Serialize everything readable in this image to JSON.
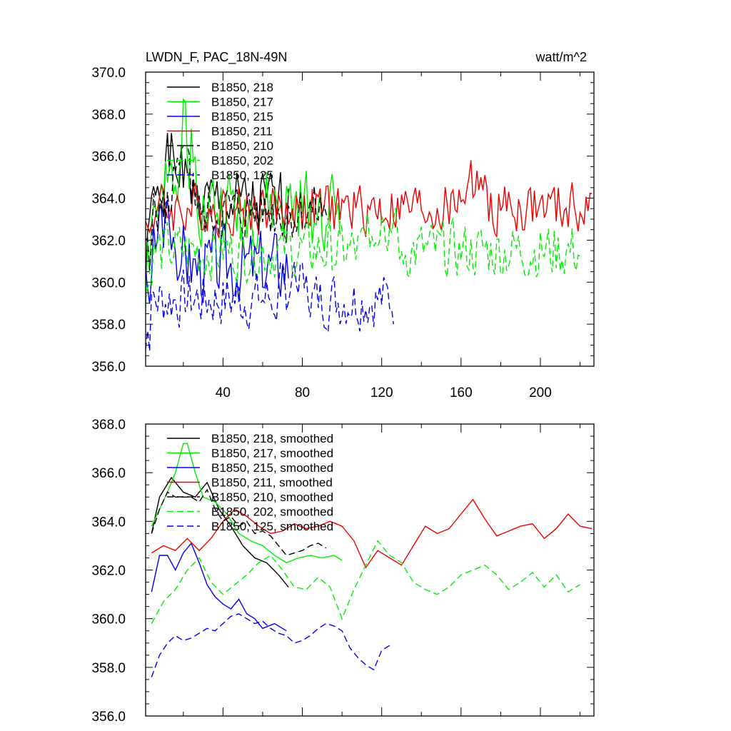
{
  "chart_data": [
    {
      "type": "line",
      "title_left": "LWDN_F, PAC_18N-49N",
      "title_right": "watt/m^2",
      "ylim": [
        356.0,
        370.0
      ],
      "y_ticks": [
        "356.0",
        "358.0",
        "360.0",
        "362.0",
        "364.0",
        "366.0",
        "368.0",
        "370.0"
      ],
      "xlim": [
        1,
        227
      ],
      "x_ticks": [
        "40",
        "80",
        "120",
        "160",
        "200"
      ],
      "series": [
        {
          "name": "B1850, 218",
          "color": "#000000",
          "dash": "solid",
          "x_start": 1,
          "x_end": 73,
          "mean": 363.6,
          "amplitude": 1.2,
          "peak_x": 15,
          "peak_y": 367.1,
          "min_y": 358.5,
          "seed": 1
        },
        {
          "name": "B1850, 217",
          "color": "#00ee00",
          "dash": "solid",
          "x_start": 1,
          "x_end": 99,
          "mean": 363.5,
          "amplitude": 1.4,
          "peak_x": 20,
          "peak_y": 368.7,
          "min_y": 358.0,
          "seed": 2
        },
        {
          "name": "B1850, 215",
          "color": "#0000ee",
          "dash": "solid",
          "x_start": 1,
          "x_end": 73,
          "mean": 360.8,
          "amplitude": 1.3,
          "peak_x": 12,
          "peak_y": 364.1,
          "min_y": 357.6,
          "seed": 3
        },
        {
          "name": "B1850, 211",
          "color": "#ee0000",
          "dash": "solid",
          "x_start": 1,
          "x_end": 226,
          "mean": 363.5,
          "amplitude": 0.9,
          "peak_x": 165,
          "peak_y": 365.8,
          "min_y": 361.3,
          "seed": 4
        },
        {
          "name": "B1850, 210",
          "color": "#000000",
          "dash": "dashed",
          "x_start": 1,
          "x_end": 93,
          "mean": 363.4,
          "amplitude": 1.0,
          "peak_x": 20,
          "peak_y": 366.5,
          "min_y": 360.5,
          "seed": 5
        },
        {
          "name": "B1850, 202",
          "color": "#00ee00",
          "dash": "dashed",
          "x_start": 1,
          "x_end": 220,
          "mean": 361.5,
          "amplitude": 1.0,
          "peak_x": 120,
          "peak_y": 364.8,
          "min_y": 358.0,
          "seed": 6
        },
        {
          "name": "B1850, 125",
          "color": "#0000ee",
          "dash": "dashed",
          "x_start": 1,
          "x_end": 126,
          "mean": 359.2,
          "amplitude": 1.0,
          "peak_x": 75,
          "peak_y": 361.0,
          "min_y": 356.5,
          "seed": 7
        }
      ]
    },
    {
      "type": "line",
      "ylim": [
        356.0,
        368.0
      ],
      "y_ticks": [
        "356.0",
        "358.0",
        "360.0",
        "362.0",
        "364.0",
        "366.0",
        "368.0"
      ],
      "xlim": [
        1,
        227
      ],
      "series": [
        {
          "name": "B1850, 218, smoothed",
          "color": "#000000",
          "dash": "solid",
          "x": [
            4,
            8,
            14,
            20,
            26,
            32,
            38,
            44,
            50,
            56,
            62,
            68,
            73
          ],
          "y": [
            363.5,
            365.0,
            365.8,
            365.2,
            365.0,
            365.6,
            364.5,
            363.8,
            363.0,
            362.5,
            362.3,
            361.8,
            361.3
          ]
        },
        {
          "name": "B1850, 217, smoothed",
          "color": "#00ee00",
          "dash": "solid",
          "x": [
            4,
            8,
            12,
            16,
            20,
            22,
            26,
            30,
            36,
            42,
            48,
            54,
            60,
            66,
            72,
            78,
            84,
            90,
            96,
            100
          ],
          "y": [
            363.8,
            364.5,
            365.2,
            366.0,
            367.2,
            367.2,
            366.0,
            365.0,
            364.8,
            364.3,
            363.5,
            363.2,
            363.0,
            362.6,
            362.3,
            362.5,
            362.6,
            362.5,
            362.6,
            362.4
          ]
        },
        {
          "name": "B1850, 215, smoothed",
          "color": "#0000ee",
          "dash": "solid",
          "x": [
            4,
            8,
            12,
            16,
            20,
            24,
            28,
            32,
            36,
            40,
            44,
            48,
            52,
            56,
            60,
            66,
            72
          ],
          "y": [
            361.1,
            362.6,
            362.6,
            362.0,
            362.7,
            363.1,
            362.3,
            361.4,
            360.9,
            360.6,
            360.4,
            360.8,
            360.2,
            360.0,
            359.6,
            359.8,
            359.5
          ]
        },
        {
          "name": "B1850, 211, smoothed",
          "color": "#ee0000",
          "dash": "solid",
          "x": [
            4,
            10,
            16,
            22,
            28,
            34,
            40,
            46,
            52,
            58,
            64,
            70,
            76,
            82,
            88,
            94,
            100,
            106,
            112,
            118,
            124,
            130,
            136,
            142,
            148,
            154,
            160,
            166,
            172,
            178,
            184,
            190,
            196,
            202,
            208,
            214,
            220,
            226
          ],
          "y": [
            362.7,
            363.0,
            362.8,
            363.3,
            362.8,
            363.3,
            364.0,
            364.5,
            364.2,
            363.8,
            363.5,
            363.6,
            363.9,
            363.7,
            363.8,
            364.0,
            363.8,
            363.2,
            362.1,
            362.8,
            362.5,
            362.2,
            363.0,
            363.8,
            363.5,
            363.7,
            364.3,
            364.9,
            364.1,
            363.4,
            363.6,
            363.8,
            363.9,
            363.3,
            363.7,
            364.3,
            363.8,
            363.7
          ]
        },
        {
          "name": "B1850, 210, smoothed",
          "color": "#000000",
          "dash": "dashed",
          "x": [
            4,
            8,
            12,
            16,
            20,
            24,
            28,
            32,
            36,
            40,
            44,
            48,
            52,
            56,
            60,
            64,
            68,
            72,
            76,
            80,
            84,
            88,
            92
          ],
          "y": [
            363.5,
            364.5,
            365.2,
            365.0,
            365.0,
            365.0,
            364.8,
            365.3,
            364.5,
            364.0,
            364.2,
            363.8,
            364.0,
            363.5,
            363.6,
            363.4,
            363.0,
            362.6,
            362.7,
            362.8,
            363.0,
            363.1,
            362.9
          ]
        },
        {
          "name": "B1850, 202, smoothed",
          "color": "#00ee00",
          "dash": "dashed",
          "x": [
            4,
            10,
            16,
            22,
            28,
            34,
            40,
            46,
            52,
            58,
            64,
            70,
            76,
            82,
            88,
            94,
            100,
            106,
            112,
            118,
            124,
            130,
            136,
            142,
            148,
            154,
            160,
            166,
            172,
            178,
            184,
            190,
            196,
            202,
            208,
            214,
            220
          ],
          "y": [
            359.8,
            360.7,
            361.2,
            362.0,
            362.5,
            361.5,
            361.0,
            361.4,
            361.8,
            362.3,
            362.6,
            362.0,
            361.3,
            361.2,
            361.7,
            361.3,
            360.0,
            361.2,
            362.2,
            363.2,
            362.6,
            362.3,
            361.5,
            361.2,
            361.0,
            361.3,
            361.8,
            362.0,
            362.2,
            361.8,
            361.2,
            361.5,
            361.9,
            361.3,
            361.8,
            361.1,
            361.4
          ]
        },
        {
          "name": "B1850, 125, smoothed",
          "color": "#0000ee",
          "dash": "dashed",
          "x": [
            4,
            8,
            12,
            16,
            20,
            24,
            28,
            32,
            36,
            40,
            44,
            48,
            52,
            56,
            60,
            64,
            68,
            72,
            76,
            80,
            84,
            88,
            92,
            96,
            100,
            104,
            108,
            112,
            116,
            120,
            124
          ],
          "y": [
            357.6,
            358.5,
            359.0,
            359.3,
            359.1,
            359.2,
            359.4,
            359.6,
            359.5,
            359.8,
            360.1,
            360.2,
            360.0,
            359.8,
            359.9,
            359.6,
            359.4,
            359.3,
            359.0,
            359.1,
            359.3,
            359.6,
            359.8,
            359.7,
            359.5,
            358.8,
            358.4,
            358.1,
            357.9,
            358.7,
            358.9
          ]
        }
      ]
    }
  ]
}
